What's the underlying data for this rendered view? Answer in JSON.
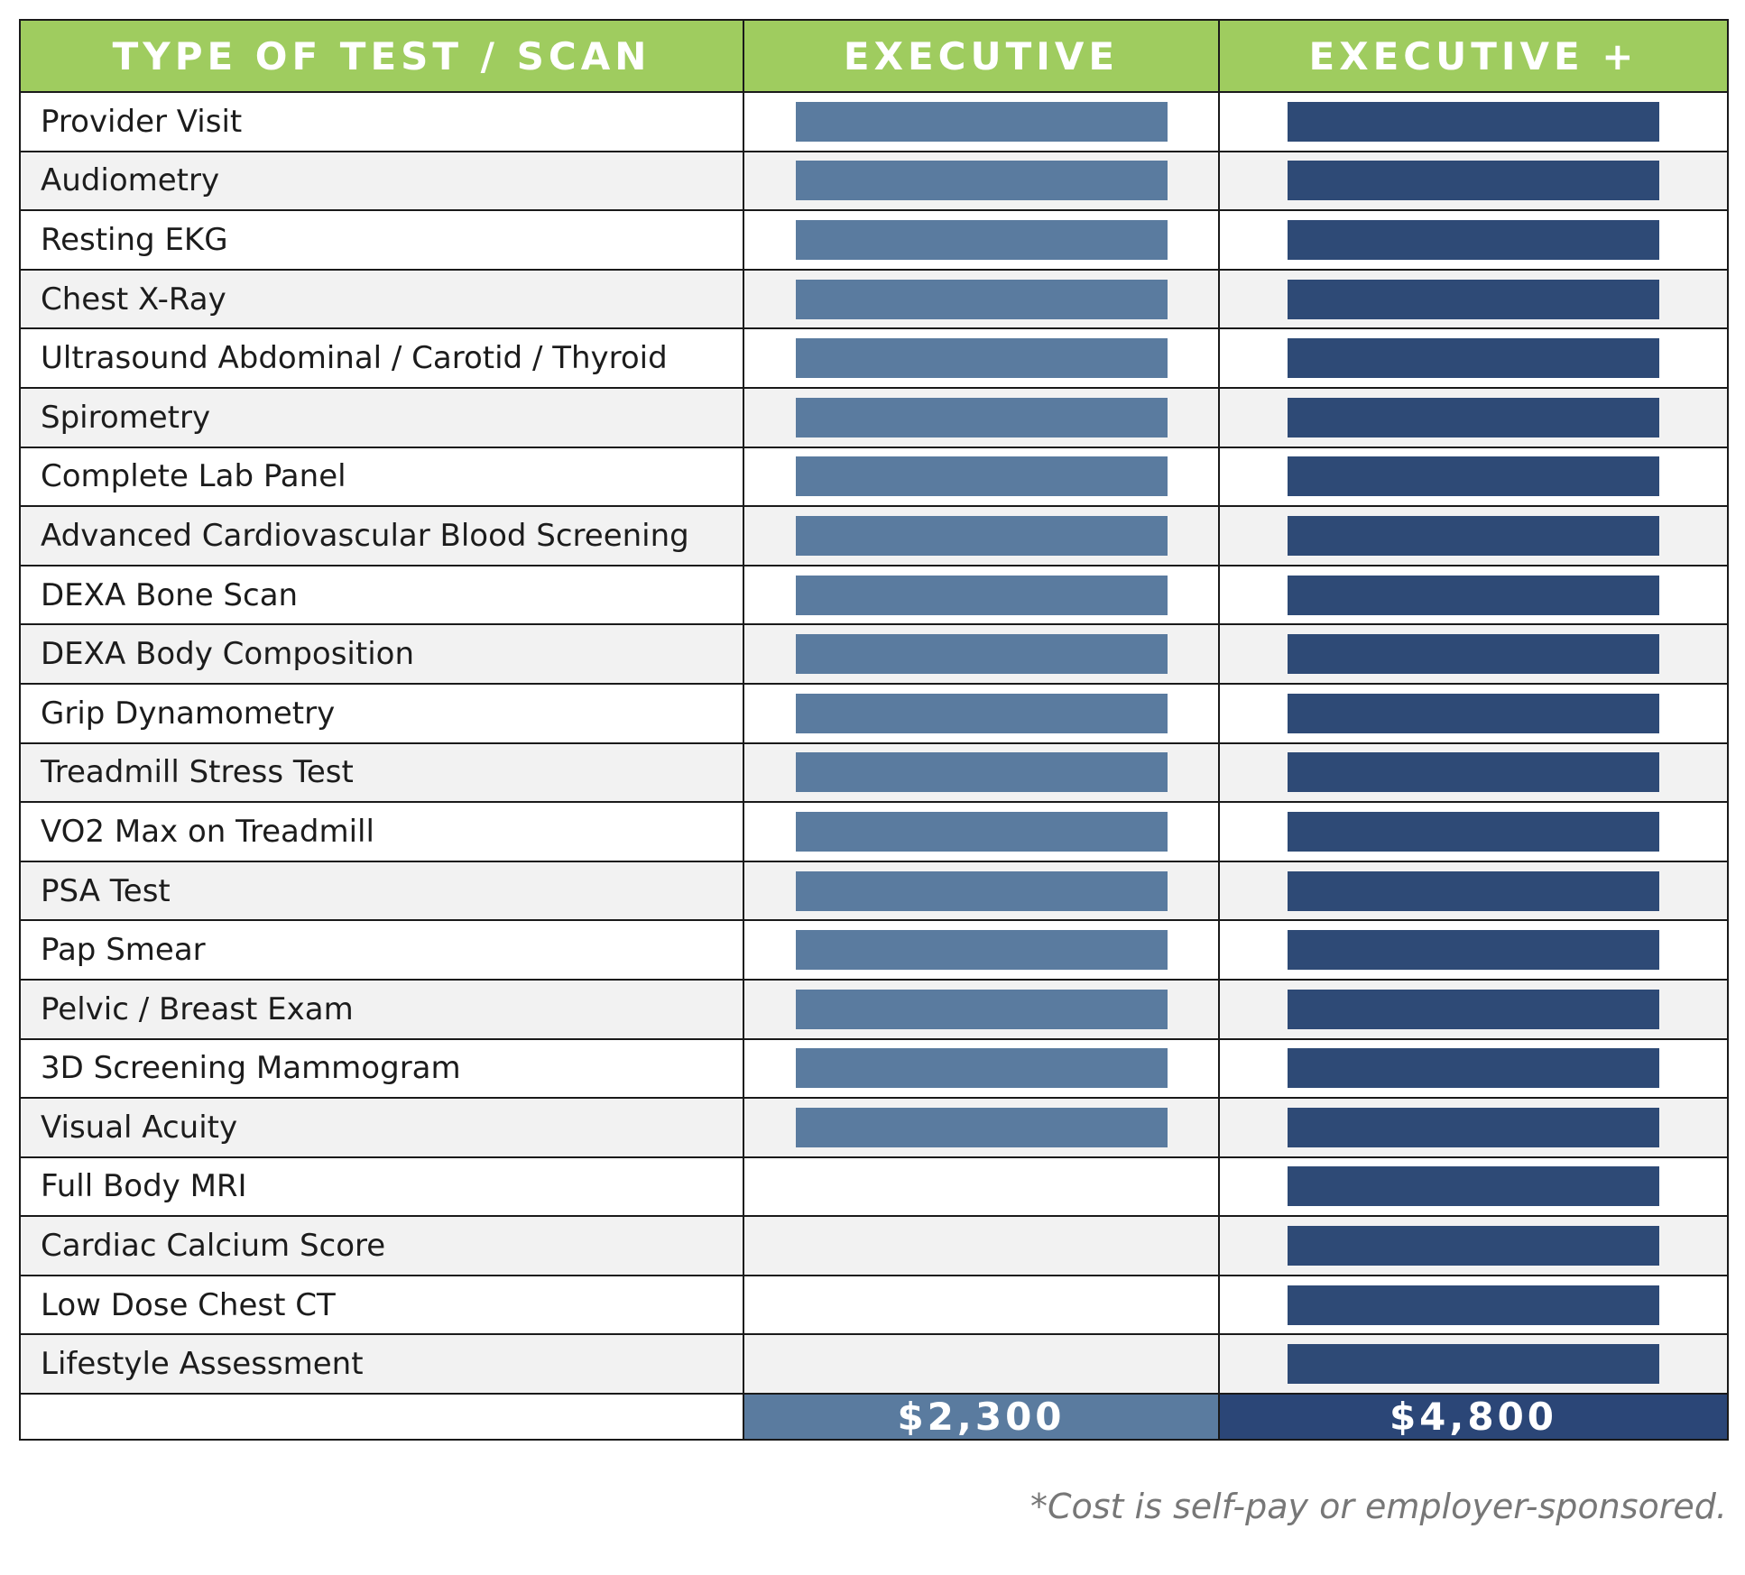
{
  "header": {
    "col_test": "TYPE OF TEST / SCAN",
    "col_executive": "EXECUTIVE",
    "col_executive_plus": "EXECUTIVE +"
  },
  "colors": {
    "header_green": "#9fcc5f",
    "executive_blue": "#5a7b9f",
    "executive_plus_blue": "#2e4a76",
    "row_alt": "#f2f2f2"
  },
  "rows": [
    {
      "label": "Provider Visit",
      "executive": true,
      "executive_plus": true
    },
    {
      "label": "Audiometry",
      "executive": true,
      "executive_plus": true
    },
    {
      "label": "Resting EKG",
      "executive": true,
      "executive_plus": true
    },
    {
      "label": "Chest X-Ray",
      "executive": true,
      "executive_plus": true
    },
    {
      "label": "Ultrasound Abdominal / Carotid / Thyroid",
      "executive": true,
      "executive_plus": true
    },
    {
      "label": "Spirometry",
      "executive": true,
      "executive_plus": true
    },
    {
      "label": "Complete Lab Panel",
      "executive": true,
      "executive_plus": true
    },
    {
      "label": "Advanced Cardiovascular Blood Screening",
      "executive": true,
      "executive_plus": true
    },
    {
      "label": "DEXA Bone Scan",
      "executive": true,
      "executive_plus": true
    },
    {
      "label": "DEXA Body Composition",
      "executive": true,
      "executive_plus": true
    },
    {
      "label": "Grip Dynamometry",
      "executive": true,
      "executive_plus": true
    },
    {
      "label": "Treadmill Stress Test",
      "executive": true,
      "executive_plus": true
    },
    {
      "label": "VO2 Max on Treadmill",
      "executive": true,
      "executive_plus": true
    },
    {
      "label": "PSA Test",
      "executive": true,
      "executive_plus": true
    },
    {
      "label": "Pap Smear",
      "executive": true,
      "executive_plus": true
    },
    {
      "label": "Pelvic / Breast Exam",
      "executive": true,
      "executive_plus": true
    },
    {
      "label": "3D Screening Mammogram",
      "executive": true,
      "executive_plus": true
    },
    {
      "label": "Visual Acuity",
      "executive": true,
      "executive_plus": true
    },
    {
      "label": "Full Body MRI",
      "executive": false,
      "executive_plus": true
    },
    {
      "label": "Cardiac Calcium Score",
      "executive": false,
      "executive_plus": true
    },
    {
      "label": "Low Dose Chest CT",
      "executive": false,
      "executive_plus": true
    },
    {
      "label": "Lifestyle Assessment",
      "executive": false,
      "executive_plus": true
    }
  ],
  "prices": {
    "executive": "$2,300",
    "executive_plus": "$4,800"
  },
  "footnote": "*Cost is self-pay or employer-sponsored."
}
